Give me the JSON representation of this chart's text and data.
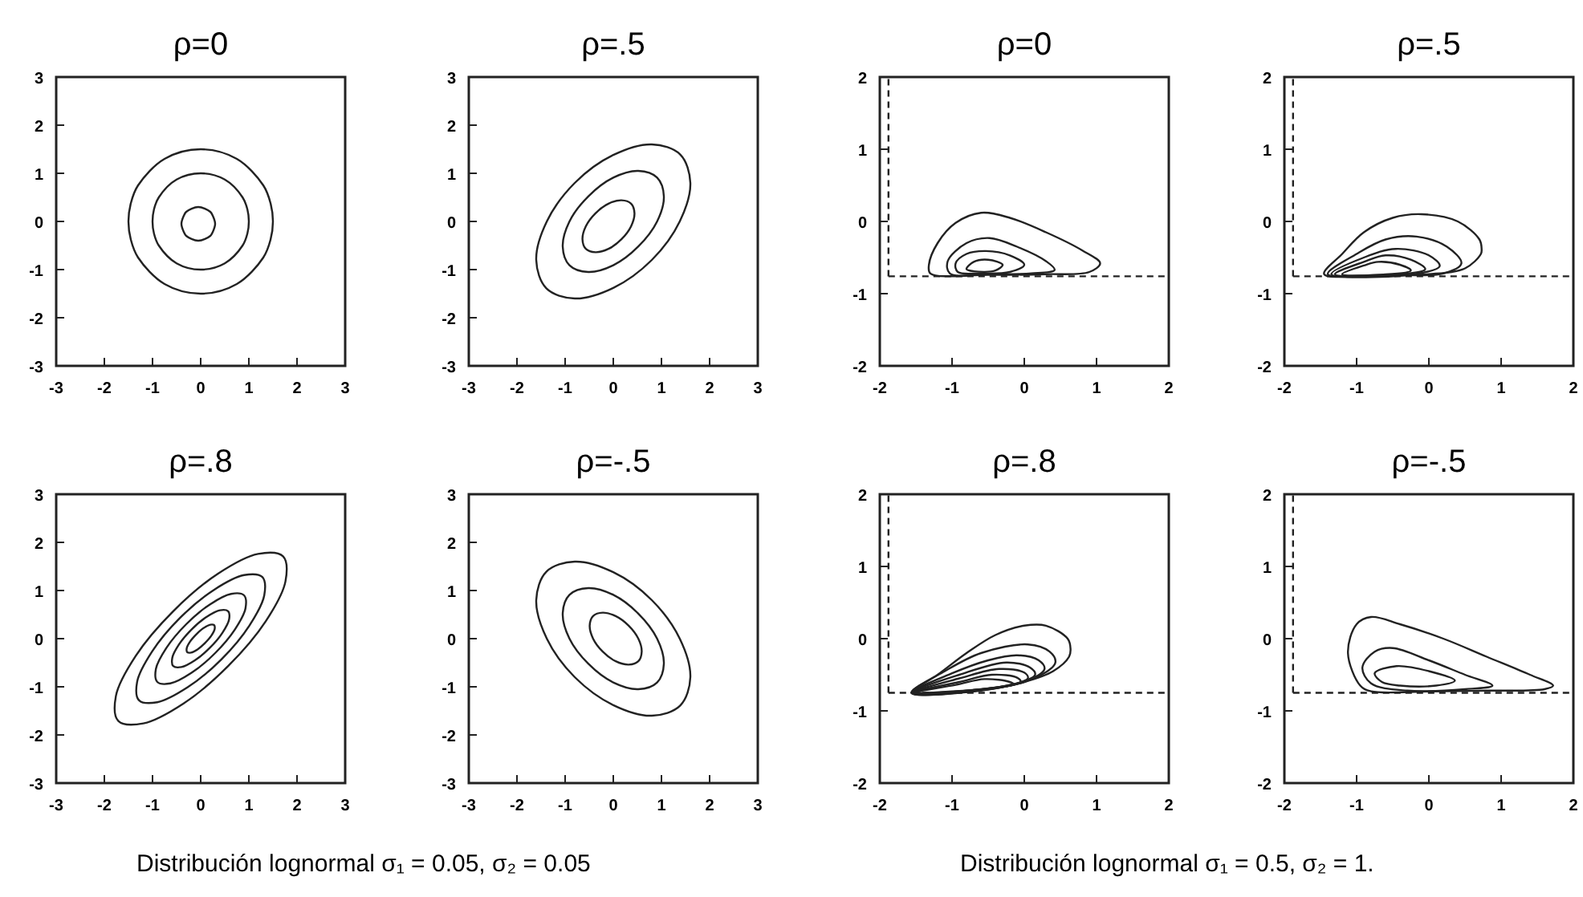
{
  "chart_data": [
    {
      "type": "line",
      "title": "ρ=0",
      "xlim": [
        -3,
        3
      ],
      "ylim": [
        -3,
        3
      ],
      "xticks": [
        -3,
        -2,
        -1,
        0,
        1,
        2,
        3
      ],
      "yticks": [
        -3,
        -2,
        -1,
        0,
        1,
        2,
        3
      ]
    },
    {
      "type": "line",
      "title": "ρ=.5",
      "xlim": [
        -3,
        3
      ],
      "ylim": [
        -3,
        3
      ],
      "xticks": [
        -3,
        -2,
        -1,
        0,
        1,
        2,
        3
      ],
      "yticks": [
        -3,
        -2,
        -1,
        0,
        1,
        2,
        3
      ]
    },
    {
      "type": "line",
      "title": "ρ=0",
      "xlim": [
        -2,
        2
      ],
      "ylim": [
        -2,
        2
      ],
      "xticks": [
        -2,
        -1,
        0,
        1,
        2
      ],
      "yticks": [
        -2,
        -1,
        0,
        1,
        2
      ],
      "ref_lines": [
        {
          "axis": "x",
          "value": -1.88,
          "line_style": "dashed",
          "color": "#222222"
        },
        {
          "axis": "y",
          "value": -0.76,
          "line_style": "dashed",
          "color": "#222222"
        }
      ]
    },
    {
      "type": "line",
      "title": "ρ=.5",
      "xlim": [
        -2,
        2
      ],
      "ylim": [
        -2,
        2
      ],
      "xticks": [
        -2,
        -1,
        0,
        1,
        2
      ],
      "yticks": [
        -2,
        -1,
        0,
        1,
        2
      ],
      "ref_lines": [
        {
          "axis": "x",
          "value": -1.88,
          "line_style": "dashed",
          "color": "#222222"
        },
        {
          "axis": "y",
          "value": -0.76,
          "line_style": "dashed",
          "color": "#222222"
        }
      ]
    },
    {
      "type": "line",
      "title": "ρ=.8",
      "xlim": [
        -3,
        3
      ],
      "ylim": [
        -3,
        3
      ],
      "xticks": [
        -3,
        -2,
        -1,
        0,
        1,
        2,
        3
      ],
      "yticks": [
        -3,
        -2,
        -1,
        0,
        1,
        2,
        3
      ],
      "annotations": [
        "Distribución lognormal  σ₁ = 0.05, σ₂ = 0.05"
      ]
    },
    {
      "type": "line",
      "title": "ρ=-.5",
      "xlim": [
        -3,
        3
      ],
      "ylim": [
        -3,
        3
      ],
      "xticks": [
        -3,
        -2,
        -1,
        0,
        1,
        2,
        3
      ],
      "yticks": [
        -3,
        -2,
        -1,
        0,
        1,
        2,
        3
      ]
    },
    {
      "type": "line",
      "title": "ρ=.8",
      "xlim": [
        -2,
        2
      ],
      "ylim": [
        -2,
        2
      ],
      "xticks": [
        -2,
        -1,
        0,
        1,
        2
      ],
      "yticks": [
        -2,
        -1,
        0,
        1,
        2
      ],
      "annotations": [
        "Distribución lognormal   σ₁ = 0.5, σ₂ = 1."
      ],
      "ref_lines": [
        {
          "axis": "x",
          "value": -1.88,
          "line_style": "dashed",
          "color": "#222222"
        },
        {
          "axis": "y",
          "value": -0.75,
          "line_style": "dashed",
          "color": "#222222"
        }
      ]
    },
    {
      "type": "line",
      "title": "ρ=-.5",
      "xlim": [
        -2,
        2
      ],
      "ylim": [
        -2,
        2
      ],
      "xticks": [
        -2,
        -1,
        0,
        1,
        2
      ],
      "yticks": [
        -2,
        -1,
        0,
        1,
        2
      ],
      "ref_lines": [
        {
          "axis": "x",
          "value": -1.88,
          "line_style": "dashed",
          "color": "#222222"
        },
        {
          "axis": "y",
          "value": -0.75,
          "line_style": "dashed",
          "color": "#222222"
        }
      ]
    }
  ]
}
